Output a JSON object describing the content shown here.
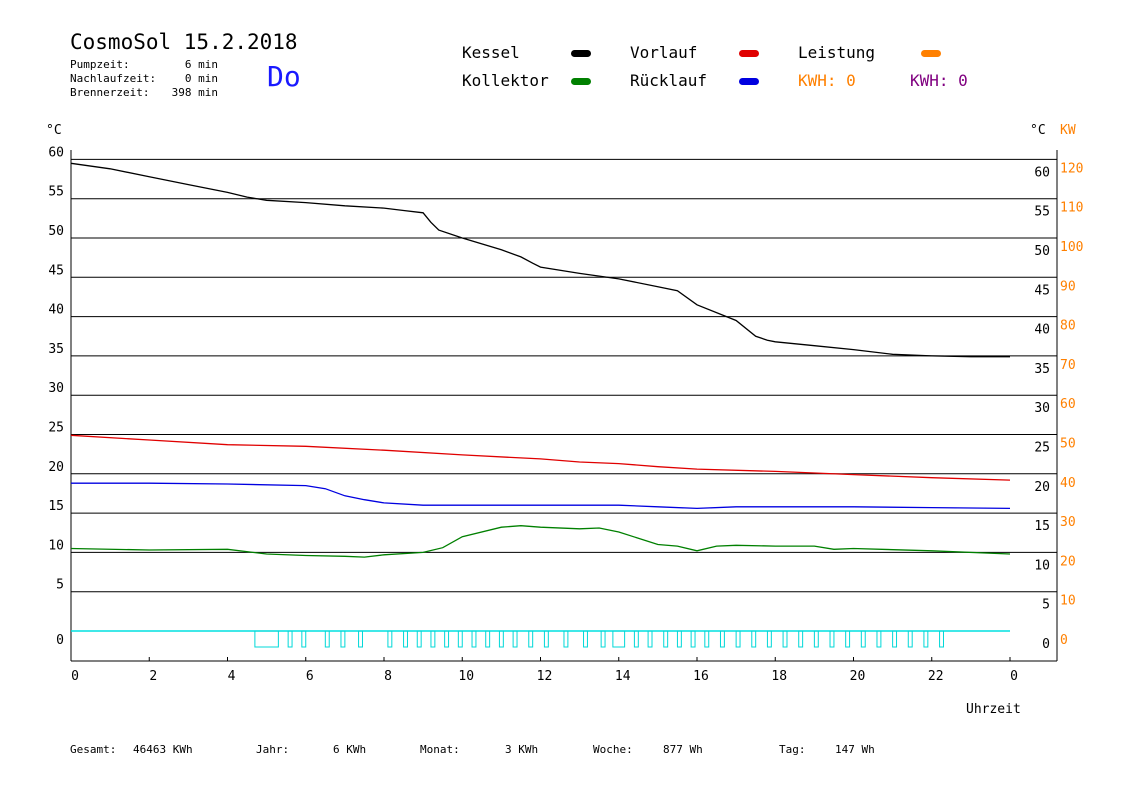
{
  "header": {
    "title": "CosmoSol 15.2.2018",
    "day": "Do",
    "stats": [
      {
        "label": "Pumpzeit:",
        "value": "6 min"
      },
      {
        "label": "Nachlaufzeit:",
        "value": "0 min"
      },
      {
        "label": "Brennerzeit:",
        "value": "398 min"
      }
    ]
  },
  "legend": {
    "kessel": {
      "label": "Kessel",
      "color": "#000000"
    },
    "vorlauf": {
      "label": "Vorlauf",
      "color": "#e00000"
    },
    "leistung": {
      "label": "Leistung",
      "color": "#ff8000"
    },
    "kollektor": {
      "label": "Kollektor",
      "color": "#008000"
    },
    "ruecklauf": {
      "label": "Rücklauf",
      "color": "#0000e0"
    },
    "kwh_orange": "KWH: 0",
    "kwh_purple": "KWH: 0"
  },
  "axes": {
    "left_unit": "°C",
    "right_unit": "°C",
    "right_unit2": "KW",
    "xlabel": "Uhrzeit"
  },
  "footer": {
    "gesamt_label": "Gesamt:",
    "gesamt_value": "46463 KWh",
    "jahr_label": "Jahr:",
    "jahr_value": "6 KWh",
    "monat_label": "Monat:",
    "monat_value": "3 KWh",
    "woche_label": "Woche:",
    "woche_value": "877 Wh",
    "tag_label": "Tag:",
    "tag_value": "147 Wh"
  },
  "chart_data": {
    "type": "line",
    "title": "CosmoSol 15.2.2018",
    "xlabel": "Uhrzeit",
    "ylabel": "°C",
    "y2label": "KW",
    "xlim": [
      0,
      24
    ],
    "ylim": [
      -3,
      62
    ],
    "y2lim": [
      -6,
      124
    ],
    "x_ticks": [
      "0",
      "2",
      "4",
      "6",
      "8",
      "10",
      "12",
      "14",
      "16",
      "18",
      "20",
      "22",
      "0"
    ],
    "y_ticks": [
      0,
      5,
      10,
      15,
      20,
      25,
      30,
      35,
      40,
      45,
      50,
      55,
      60
    ],
    "y2_ticks": [
      0,
      10,
      20,
      30,
      40,
      50,
      60,
      70,
      80,
      90,
      100,
      110,
      120
    ],
    "grid": true,
    "series": [
      {
        "name": "Kessel",
        "color": "#000000",
        "x": [
          0,
          1,
          2,
          3,
          4,
          4.5,
          5,
          6,
          7,
          8,
          8.5,
          9,
          9.2,
          9.4,
          10,
          11,
          11.5,
          11.8,
          12,
          13,
          14,
          15,
          15.5,
          16,
          17,
          17.5,
          17.8,
          18,
          19,
          20,
          21,
          22,
          23,
          24
        ],
        "y": [
          59.5,
          58.8,
          57.8,
          56.8,
          55.8,
          55.2,
          54.8,
          54.5,
          54.1,
          53.8,
          53.5,
          53.2,
          52,
          51,
          50,
          48.5,
          47.6,
          46.8,
          46.3,
          45.5,
          44.8,
          43.8,
          43.3,
          41.5,
          39.5,
          37.5,
          37,
          36.8,
          36.3,
          35.8,
          35.2,
          35,
          34.9,
          34.9
        ]
      },
      {
        "name": "Vorlauf",
        "color": "#e00000",
        "x": [
          0,
          2,
          4,
          6,
          8,
          10,
          12,
          13,
          14,
          15,
          16,
          18,
          20,
          22,
          24
        ],
        "y": [
          24.9,
          24.3,
          23.7,
          23.5,
          23,
          22.4,
          21.9,
          21.5,
          21.3,
          20.9,
          20.6,
          20.3,
          19.9,
          19.5,
          19.2
        ]
      },
      {
        "name": "Rücklauf",
        "color": "#0000e0",
        "x": [
          0,
          2,
          4,
          6,
          6.5,
          7,
          7.5,
          8,
          9,
          10,
          12,
          14,
          15,
          16,
          17,
          18,
          20,
          22,
          24
        ],
        "y": [
          18.8,
          18.8,
          18.7,
          18.5,
          18.1,
          17.2,
          16.7,
          16.3,
          16,
          16,
          16,
          16,
          15.8,
          15.6,
          15.8,
          15.8,
          15.8,
          15.7,
          15.6
        ]
      },
      {
        "name": "Kollektor",
        "color": "#008000",
        "x": [
          0,
          2,
          4,
          5,
          6,
          7,
          7.5,
          8,
          9,
          9.5,
          10,
          11,
          11.5,
          12,
          13,
          13.5,
          14,
          15,
          15.5,
          16,
          16.5,
          17,
          18,
          19,
          19.5,
          20,
          22,
          24
        ],
        "y": [
          10.5,
          10.3,
          10.4,
          9.8,
          9.6,
          9.5,
          9.4,
          9.7,
          10,
          10.6,
          12,
          13.2,
          13.4,
          13.2,
          13,
          13.1,
          12.6,
          11,
          10.8,
          10.2,
          10.8,
          10.9,
          10.8,
          10.8,
          10.4,
          10.5,
          10.2,
          9.8
        ]
      }
    ],
    "burner_blocks": [
      [
        4.7,
        5.3
      ],
      [
        5.55,
        5.65
      ],
      [
        5.9,
        6.0
      ],
      [
        6.5,
        6.6
      ],
      [
        6.9,
        7.0
      ],
      [
        7.35,
        7.45
      ],
      [
        8.1,
        8.2
      ],
      [
        8.5,
        8.6
      ],
      [
        8.85,
        8.95
      ],
      [
        9.2,
        9.3
      ],
      [
        9.55,
        9.65
      ],
      [
        9.9,
        10.0
      ],
      [
        10.25,
        10.35
      ],
      [
        10.6,
        10.7
      ],
      [
        10.95,
        11.05
      ],
      [
        11.3,
        11.4
      ],
      [
        11.7,
        11.8
      ],
      [
        12.1,
        12.2
      ],
      [
        12.6,
        12.7
      ],
      [
        13.1,
        13.2
      ],
      [
        13.55,
        13.65
      ],
      [
        13.85,
        14.15
      ],
      [
        14.4,
        14.5
      ],
      [
        14.75,
        14.85
      ],
      [
        15.15,
        15.25
      ],
      [
        15.5,
        15.6
      ],
      [
        15.85,
        15.95
      ],
      [
        16.2,
        16.3
      ],
      [
        16.6,
        16.7
      ],
      [
        17.0,
        17.1
      ],
      [
        17.4,
        17.5
      ],
      [
        17.8,
        17.9
      ],
      [
        18.2,
        18.3
      ],
      [
        18.6,
        18.7
      ],
      [
        19.0,
        19.1
      ],
      [
        19.4,
        19.5
      ],
      [
        19.8,
        19.9
      ],
      [
        20.2,
        20.3
      ],
      [
        20.6,
        20.7
      ],
      [
        21.0,
        21.1
      ],
      [
        21.4,
        21.5
      ],
      [
        21.8,
        21.9
      ],
      [
        22.2,
        22.3
      ]
    ]
  }
}
